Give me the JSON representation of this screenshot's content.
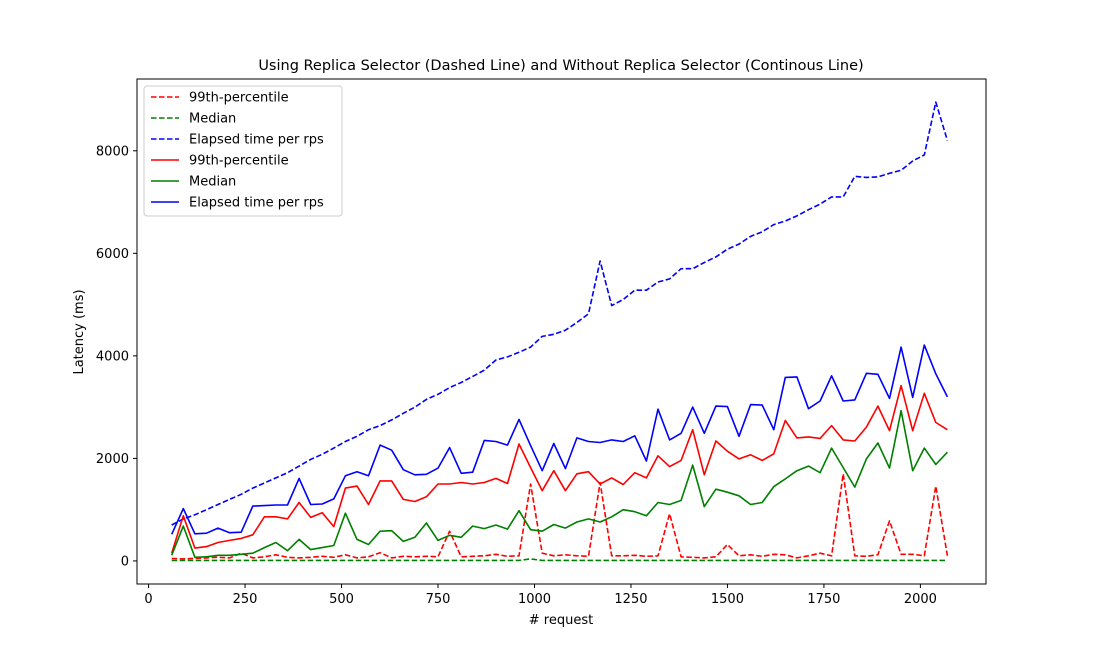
{
  "chart_data": {
    "type": "line",
    "title": "Using Replica Selector (Dashed Line) and Without Replica Selector (Continous Line)",
    "xlabel": "# request",
    "ylabel": "Latency (ms)",
    "xlim": [
      -30,
      2170
    ],
    "ylim": [
      -450,
      9400
    ],
    "xticks": [
      0,
      250,
      500,
      750,
      1000,
      1250,
      1500,
      1750,
      2000
    ],
    "yticks": [
      0,
      2000,
      4000,
      6000,
      8000
    ],
    "legend_position": "top-left",
    "x": [
      60,
      90,
      120,
      150,
      180,
      210,
      240,
      270,
      300,
      330,
      360,
      390,
      420,
      450,
      480,
      510,
      540,
      570,
      600,
      630,
      660,
      690,
      720,
      750,
      780,
      810,
      840,
      870,
      900,
      930,
      960,
      990,
      1020,
      1050,
      1080,
      1110,
      1140,
      1170,
      1200,
      1230,
      1260,
      1290,
      1320,
      1350,
      1380,
      1410,
      1440,
      1470,
      1500,
      1530,
      1560,
      1590,
      1620,
      1650,
      1680,
      1710,
      1740,
      1770,
      1800,
      1830,
      1860,
      1890,
      1920,
      1950,
      1980,
      2010,
      2040,
      2070
    ],
    "series": [
      {
        "name": "99th-percentile",
        "color": "#ff0000",
        "style": "dashed",
        "values": [
          50,
          40,
          50,
          60,
          70,
          60,
          150,
          60,
          80,
          120,
          70,
          60,
          70,
          90,
          70,
          120,
          60,
          80,
          160,
          60,
          90,
          80,
          90,
          80,
          580,
          80,
          90,
          100,
          130,
          90,
          100,
          1500,
          150,
          100,
          120,
          100,
          90,
          1530,
          100,
          100,
          110,
          90,
          100,
          920,
          80,
          70,
          60,
          80,
          320,
          100,
          120,
          90,
          130,
          120,
          60,
          100,
          150,
          100,
          1700,
          100,
          90,
          120,
          780,
          130,
          130,
          100,
          1460,
          100
        ]
      },
      {
        "name": "Median",
        "color": "#008000",
        "style": "dashed",
        "values": [
          10,
          10,
          10,
          10,
          10,
          10,
          10,
          10,
          10,
          10,
          10,
          10,
          10,
          10,
          10,
          10,
          10,
          10,
          10,
          10,
          10,
          10,
          10,
          10,
          10,
          10,
          10,
          10,
          10,
          10,
          10,
          40,
          10,
          10,
          10,
          10,
          10,
          10,
          10,
          10,
          10,
          10,
          10,
          10,
          10,
          10,
          10,
          10,
          10,
          10,
          10,
          10,
          10,
          10,
          10,
          10,
          10,
          10,
          10,
          10,
          10,
          10,
          10,
          10,
          10,
          10,
          10,
          10
        ]
      },
      {
        "name": "Elapsed time per rps",
        "color": "#0000ff",
        "style": "dashed",
        "values": [
          700,
          820,
          900,
          1000,
          1100,
          1200,
          1300,
          1420,
          1520,
          1620,
          1720,
          1850,
          1980,
          2080,
          2200,
          2330,
          2430,
          2560,
          2640,
          2750,
          2880,
          3000,
          3150,
          3250,
          3380,
          3480,
          3600,
          3720,
          3920,
          3980,
          4070,
          4170,
          4380,
          4420,
          4500,
          4650,
          4820,
          5850,
          4980,
          5100,
          5280,
          5280,
          5440,
          5500,
          5700,
          5700,
          5820,
          5930,
          6080,
          6180,
          6330,
          6420,
          6560,
          6630,
          6730,
          6850,
          6960,
          7100,
          7100,
          7500,
          7480,
          7490,
          7560,
          7620,
          7800,
          7920,
          8950,
          8200
        ]
      },
      {
        "name": "99th-percentile",
        "color": "#ff0000",
        "style": "solid",
        "values": [
          150,
          880,
          250,
          280,
          360,
          400,
          440,
          510,
          860,
          860,
          820,
          1140,
          850,
          940,
          670,
          1420,
          1460,
          1100,
          1560,
          1560,
          1200,
          1160,
          1250,
          1500,
          1500,
          1530,
          1500,
          1530,
          1610,
          1510,
          2280,
          1820,
          1370,
          1760,
          1370,
          1700,
          1740,
          1500,
          1620,
          1490,
          1720,
          1620,
          2050,
          1840,
          1960,
          2560,
          1680,
          2340,
          2140,
          1990,
          2070,
          1960,
          2090,
          2740,
          2400,
          2420,
          2390,
          2640,
          2360,
          2340,
          2610,
          3020,
          2540,
          3420,
          2540,
          3270,
          2700,
          2560
        ]
      },
      {
        "name": "Median",
        "color": "#008000",
        "style": "solid",
        "values": [
          110,
          680,
          70,
          80,
          110,
          110,
          130,
          150,
          260,
          360,
          200,
          420,
          220,
          260,
          300,
          930,
          420,
          320,
          580,
          590,
          380,
          460,
          740,
          400,
          500,
          460,
          680,
          630,
          700,
          620,
          980,
          610,
          580,
          710,
          640,
          760,
          820,
          760,
          860,
          1000,
          960,
          880,
          1140,
          1100,
          1180,
          1870,
          1060,
          1400,
          1340,
          1270,
          1100,
          1140,
          1450,
          1600,
          1760,
          1850,
          1720,
          2200,
          1820,
          1440,
          1990,
          2300,
          1810,
          2930,
          1760,
          2200,
          1880,
          2120
        ]
      },
      {
        "name": "Elapsed time per rps",
        "color": "#0000ff",
        "style": "solid",
        "values": [
          520,
          1020,
          530,
          540,
          640,
          550,
          560,
          1070,
          1080,
          1090,
          1090,
          1610,
          1100,
          1110,
          1210,
          1660,
          1740,
          1660,
          2260,
          2160,
          1780,
          1680,
          1690,
          1810,
          2210,
          1710,
          1730,
          2350,
          2330,
          2260,
          2760,
          2250,
          1760,
          2290,
          1800,
          2400,
          2330,
          2310,
          2360,
          2330,
          2440,
          1950,
          2960,
          2360,
          2490,
          3000,
          2490,
          3020,
          3010,
          2430,
          3050,
          3040,
          2560,
          3580,
          3590,
          2970,
          3120,
          3610,
          3120,
          3140,
          3660,
          3640,
          3170,
          4170,
          3190,
          4210,
          3650,
          3200
        ]
      }
    ]
  }
}
